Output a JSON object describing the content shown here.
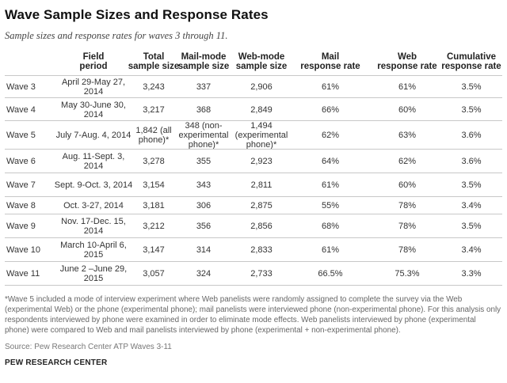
{
  "title": "Wave Sample Sizes and Response Rates",
  "subtitle": "Sample sizes and response rates for waves 3 through 11.",
  "table": {
    "headers": [
      "",
      "Field\nperiod",
      "Total\nsample size",
      "Mail-mode\nsample size",
      "Web-mode\nsample size",
      "Mail\nresponse rate",
      "Web\nresponse rate",
      "Cumulative\nresponse rate"
    ],
    "rows": [
      [
        "Wave 3",
        "April 29-May 27, 2014",
        "3,243",
        "337",
        "2,906",
        "61%",
        "61%",
        "3.5%"
      ],
      [
        "Wave 4",
        "May 30-June 30, 2014",
        "3,217",
        "368",
        "2,849",
        "66%",
        "60%",
        "3.5%"
      ],
      [
        "Wave 5",
        "July 7-Aug. 4, 2014",
        "1,842 (all phone)*",
        "348 (non-experimental phone)*",
        "1,494 (experimental phone)*",
        "62%",
        "63%",
        "3.6%"
      ],
      [
        "Wave 6",
        "Aug. 11-Sept. 3, 2014",
        "3,278",
        "355",
        "2,923",
        "64%",
        "62%",
        "3.6%"
      ],
      [
        "Wave 7",
        "Sept. 9-Oct. 3, 2014",
        "3,154",
        "343",
        "2,811",
        "61%",
        "60%",
        "3.5%"
      ],
      [
        "Wave 8",
        "Oct. 3-27, 2014",
        "3,181",
        "306",
        "2,875",
        "55%",
        "78%",
        "3.4%"
      ],
      [
        "Wave 9",
        "Nov. 17-Dec. 15, 2014",
        "3,212",
        "356",
        "2,856",
        "68%",
        "78%",
        "3.5%"
      ],
      [
        "Wave 10",
        "March 10-April 6, 2015",
        "3,147",
        "314",
        "2,833",
        "61%",
        "78%",
        "3.4%"
      ],
      [
        "Wave 11",
        "June 2 –June 29, 2015",
        "3,057",
        "324",
        "2,733",
        "66.5%",
        "75.3%",
        "3.3%"
      ]
    ]
  },
  "footnote": "*Wave 5 included a mode of interview experiment where Web panelists were randomly assigned to complete the survey via the Web (experimental Web) or the phone (experimental phone); mail panelists were interviewed phone (non-experimental phone). For this analysis only respondents interviewed by phone were examined in order to eliminate mode effects. Web panelists interviewed by phone (experimental phone) were compared to Web and mail panelists interviewed by phone (experimental + non-experimental phone).",
  "source": "Source: Pew Research Center ATP Waves 3-11",
  "org": "PEW RESEARCH CENTER"
}
